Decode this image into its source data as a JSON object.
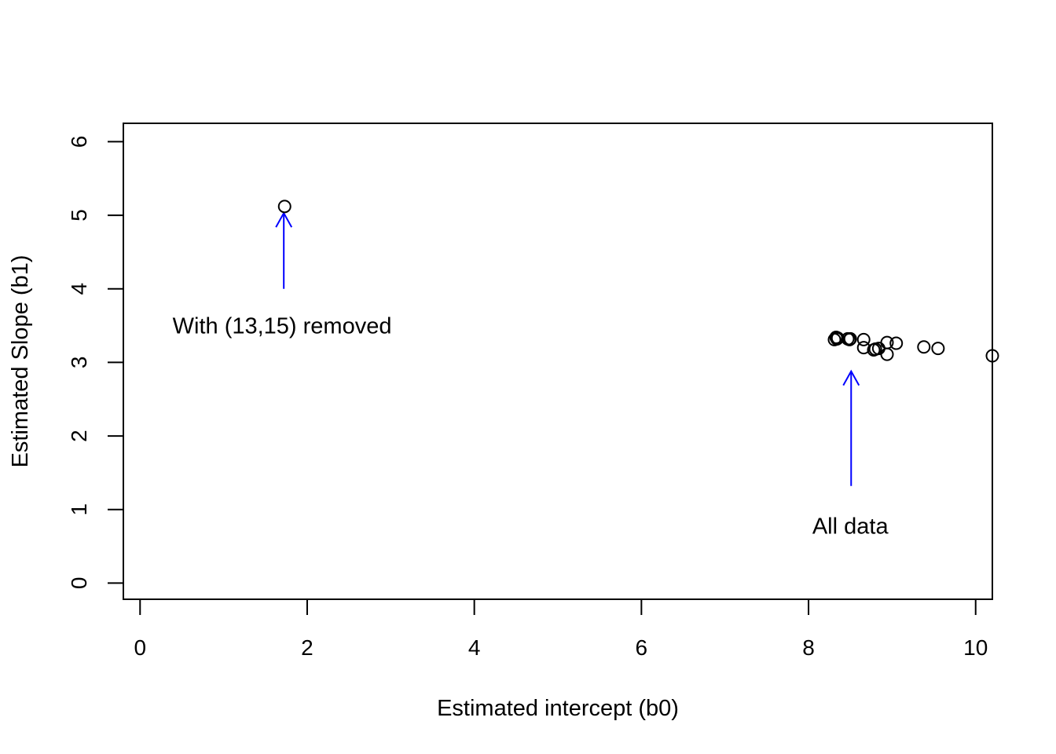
{
  "chart_data": {
    "type": "scatter",
    "title": "",
    "xlabel": "Estimated intercept (b0)",
    "ylabel": "Estimated Slope (b1)",
    "xlim": [
      -0.2,
      10.2
    ],
    "ylim": [
      -0.22,
      6.25
    ],
    "xticks": [
      0,
      2,
      4,
      6,
      8,
      10
    ],
    "yticks": [
      0,
      1,
      2,
      3,
      4,
      5,
      6
    ],
    "grid": false,
    "legend": "none",
    "marker": "open-circle",
    "annotation_color": "#0000ff",
    "series": [
      {
        "points": [
          {
            "x": 1.73,
            "y": 5.12
          },
          {
            "x": 8.31,
            "y": 3.31
          },
          {
            "x": 8.33,
            "y": 3.34
          },
          {
            "x": 8.34,
            "y": 3.32
          },
          {
            "x": 8.35,
            "y": 3.33
          },
          {
            "x": 8.47,
            "y": 3.32
          },
          {
            "x": 8.49,
            "y": 3.31
          },
          {
            "x": 8.5,
            "y": 3.32
          },
          {
            "x": 8.66,
            "y": 3.31
          },
          {
            "x": 8.66,
            "y": 3.2
          },
          {
            "x": 8.78,
            "y": 3.17
          },
          {
            "x": 8.8,
            "y": 3.18
          },
          {
            "x": 8.84,
            "y": 3.19
          },
          {
            "x": 8.94,
            "y": 3.27
          },
          {
            "x": 8.94,
            "y": 3.11
          },
          {
            "x": 9.05,
            "y": 3.26
          },
          {
            "x": 9.38,
            "y": 3.21
          },
          {
            "x": 9.55,
            "y": 3.19
          },
          {
            "x": 10.2,
            "y": 3.09
          }
        ]
      }
    ],
    "annotations": [
      {
        "text": "With (13,15) removed",
        "arrow_from": [
          1.72,
          4.0
        ],
        "arrow_to": [
          1.72,
          5.03
        ],
        "label_at": [
          1.7,
          3.5
        ]
      },
      {
        "text": "All data",
        "arrow_from": [
          8.51,
          1.32
        ],
        "arrow_to": [
          8.51,
          2.88
        ],
        "label_at": [
          8.5,
          0.78
        ]
      }
    ]
  }
}
